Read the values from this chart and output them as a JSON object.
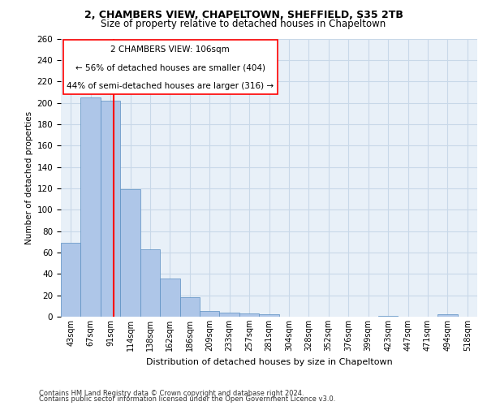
{
  "title_line1": "2, CHAMBERS VIEW, CHAPELTOWN, SHEFFIELD, S35 2TB",
  "title_line2": "Size of property relative to detached houses in Chapeltown",
  "xlabel": "Distribution of detached houses by size in Chapeltown",
  "ylabel": "Number of detached properties",
  "bar_labels": [
    "43sqm",
    "67sqm",
    "91sqm",
    "114sqm",
    "138sqm",
    "162sqm",
    "186sqm",
    "209sqm",
    "233sqm",
    "257sqm",
    "281sqm",
    "304sqm",
    "328sqm",
    "352sqm",
    "376sqm",
    "399sqm",
    "423sqm",
    "447sqm",
    "471sqm",
    "494sqm",
    "518sqm"
  ],
  "bar_values": [
    69,
    205,
    202,
    119,
    63,
    36,
    18,
    5,
    4,
    3,
    2,
    0,
    0,
    0,
    0,
    0,
    1,
    0,
    0,
    2,
    0
  ],
  "bar_color": "#aec6e8",
  "bar_edge_color": "#5a8fc2",
  "annotation_line1": "2 CHAMBERS VIEW: 106sqm",
  "annotation_line2": "← 56% of detached houses are smaller (404)",
  "annotation_line3": "44% of semi-detached houses are larger (316) →",
  "ylim": [
    0,
    260
  ],
  "yticks": [
    0,
    20,
    40,
    60,
    80,
    100,
    120,
    140,
    160,
    180,
    200,
    220,
    240,
    260
  ],
  "grid_color": "#c8d8e8",
  "background_color": "#e8f0f8",
  "footer_line1": "Contains HM Land Registry data © Crown copyright and database right 2024.",
  "footer_line2": "Contains public sector information licensed under the Open Government Licence v3.0."
}
